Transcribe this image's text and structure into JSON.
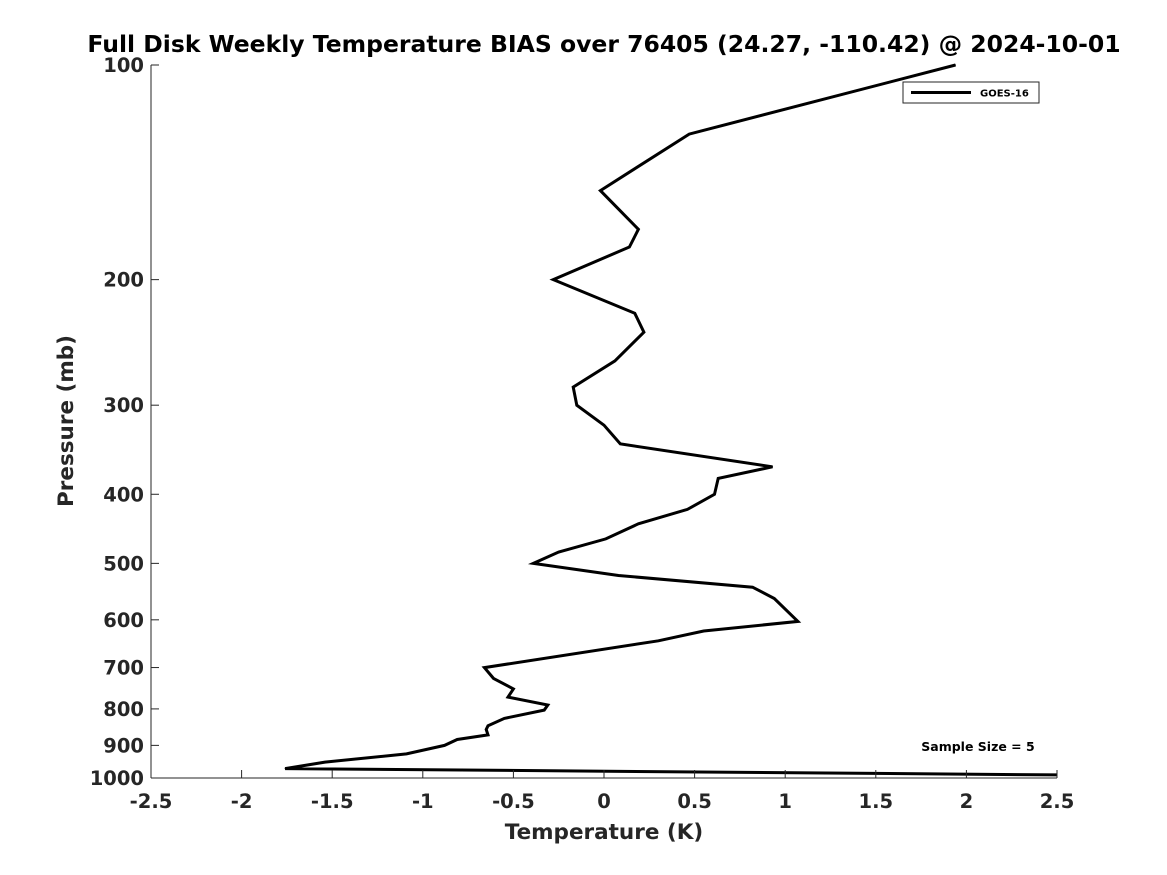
{
  "chart_data": {
    "type": "line",
    "title": "Full Disk Weekly Temperature BIAS over 76405 (24.27, -110.42) @ 2024-10-01",
    "xlabel": "Temperature (K)",
    "ylabel": "Pressure (mb)",
    "xlim": [
      -2.5,
      2.5
    ],
    "ylim": [
      100,
      1000
    ],
    "y_scale": "log",
    "y_reversed": true,
    "x_ticks": [
      "-2.5",
      "-2",
      "-1.5",
      "-1",
      "-0.5",
      "0",
      "0.5",
      "1",
      "1.5",
      "2",
      "2.5"
    ],
    "x_tick_values": [
      -2.5,
      -2,
      -1.5,
      -1,
      -0.5,
      0,
      0.5,
      1,
      1.5,
      2,
      2.5
    ],
    "y_ticks": [
      "100",
      "200",
      "300",
      "400",
      "500",
      "600",
      "700",
      "800",
      "900",
      "1000"
    ],
    "y_tick_values": [
      100,
      200,
      300,
      400,
      500,
      600,
      700,
      800,
      900,
      1000
    ],
    "grid": false,
    "legend_position": "top-right",
    "annotation": "Sample Size = 5",
    "series": [
      {
        "name": "GOES-16",
        "color": "#000000",
        "points": [
          {
            "x": 1.94,
            "p": 100
          },
          {
            "x": 0.47,
            "p": 125
          },
          {
            "x": -0.02,
            "p": 150
          },
          {
            "x": 0.19,
            "p": 170
          },
          {
            "x": 0.14,
            "p": 180
          },
          {
            "x": -0.28,
            "p": 200
          },
          {
            "x": 0.17,
            "p": 223
          },
          {
            "x": 0.22,
            "p": 237
          },
          {
            "x": 0.06,
            "p": 260
          },
          {
            "x": -0.17,
            "p": 283
          },
          {
            "x": -0.15,
            "p": 300
          },
          {
            "x": 0.0,
            "p": 320
          },
          {
            "x": 0.09,
            "p": 340
          },
          {
            "x": 0.93,
            "p": 366
          },
          {
            "x": 0.63,
            "p": 380
          },
          {
            "x": 0.61,
            "p": 400
          },
          {
            "x": 0.46,
            "p": 420
          },
          {
            "x": 0.19,
            "p": 440
          },
          {
            "x": 0.01,
            "p": 462
          },
          {
            "x": -0.25,
            "p": 482
          },
          {
            "x": -0.39,
            "p": 500
          },
          {
            "x": 0.08,
            "p": 520
          },
          {
            "x": 0.82,
            "p": 540
          },
          {
            "x": 0.94,
            "p": 560
          },
          {
            "x": 1.07,
            "p": 603
          },
          {
            "x": 0.55,
            "p": 622
          },
          {
            "x": 0.3,
            "p": 642
          },
          {
            "x": -0.66,
            "p": 700
          },
          {
            "x": -0.61,
            "p": 725
          },
          {
            "x": -0.5,
            "p": 750
          },
          {
            "x": -0.53,
            "p": 770
          },
          {
            "x": -0.31,
            "p": 790
          },
          {
            "x": -0.33,
            "p": 803
          },
          {
            "x": -0.55,
            "p": 825
          },
          {
            "x": -0.64,
            "p": 845
          },
          {
            "x": -0.65,
            "p": 855
          },
          {
            "x": -0.64,
            "p": 870
          },
          {
            "x": -0.81,
            "p": 883
          },
          {
            "x": -0.88,
            "p": 900
          },
          {
            "x": -1.09,
            "p": 925
          },
          {
            "x": -1.54,
            "p": 950
          },
          {
            "x": -1.76,
            "p": 970
          },
          {
            "x": 2.5,
            "p": 990
          }
        ]
      }
    ]
  }
}
